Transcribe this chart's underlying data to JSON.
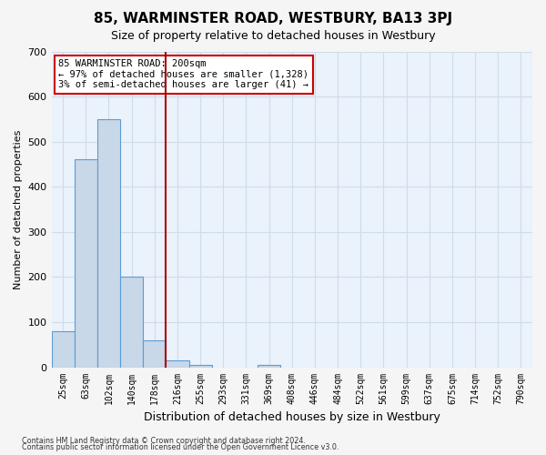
{
  "title": "85, WARMINSTER ROAD, WESTBURY, BA13 3PJ",
  "subtitle": "Size of property relative to detached houses in Westbury",
  "xlabel": "Distribution of detached houses by size in Westbury",
  "ylabel": "Number of detached properties",
  "bin_labels": [
    "25sqm",
    "63sqm",
    "102sqm",
    "140sqm",
    "178sqm",
    "216sqm",
    "255sqm",
    "293sqm",
    "331sqm",
    "369sqm",
    "408sqm",
    "446sqm",
    "484sqm",
    "522sqm",
    "561sqm",
    "599sqm",
    "637sqm",
    "675sqm",
    "714sqm",
    "752sqm",
    "790sqm"
  ],
  "bar_heights": [
    80,
    460,
    550,
    200,
    60,
    15,
    5,
    0,
    0,
    5,
    0,
    0,
    0,
    0,
    0,
    0,
    0,
    0,
    0,
    0,
    0
  ],
  "bar_color": "#c8d8e8",
  "bar_edge_color": "#5b9bd5",
  "vline_x": 4.5,
  "vline_color": "#aa0000",
  "ylim": [
    0,
    700
  ],
  "yticks": [
    0,
    100,
    200,
    300,
    400,
    500,
    600,
    700
  ],
  "annotation_title": "85 WARMINSTER ROAD: 200sqm",
  "annotation_line1": "← 97% of detached houses are smaller (1,328)",
  "annotation_line2": "3% of semi-detached houses are larger (41) →",
  "annotation_box_color": "#ffffff",
  "annotation_border_color": "#cc0000",
  "grid_color": "#d0dce8",
  "background_color": "#eaf2fb",
  "fig_background_color": "#f5f5f5",
  "footnote1": "Contains HM Land Registry data © Crown copyright and database right 2024.",
  "footnote2": "Contains public sector information licensed under the Open Government Licence v3.0."
}
